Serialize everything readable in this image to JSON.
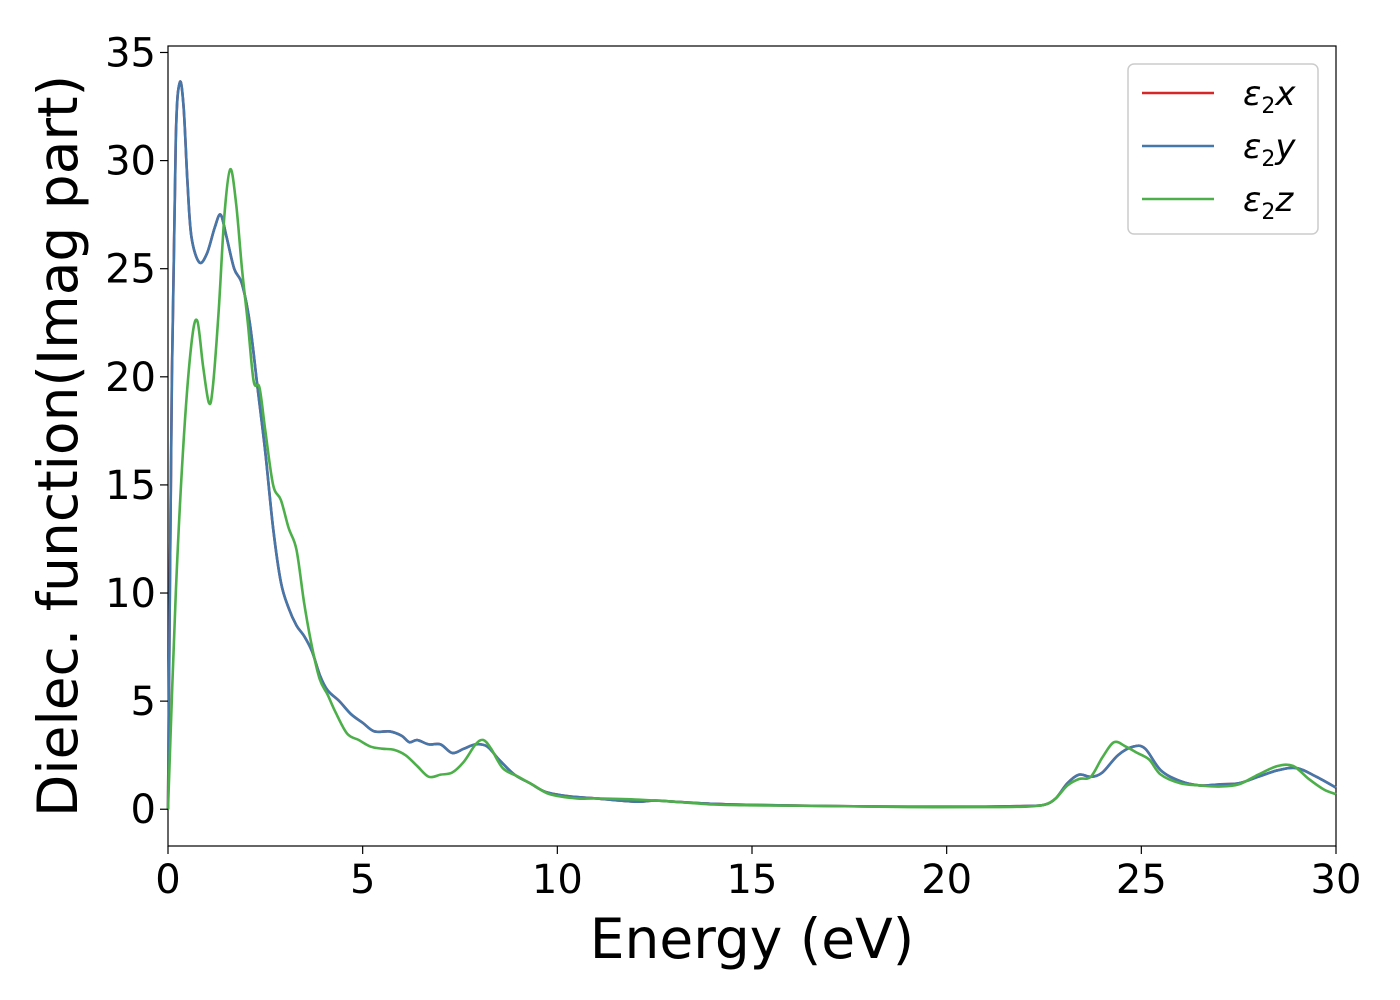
{
  "chart_data": {
    "type": "line",
    "xlabel": "Energy (eV)",
    "ylabel": "Dielec. function(Imag part)",
    "xlim": [
      0,
      30
    ],
    "ylim": [
      -1.7,
      35.3
    ],
    "xticks": [
      0,
      5,
      10,
      15,
      20,
      25,
      30
    ],
    "yticks": [
      0,
      5,
      10,
      15,
      20,
      25,
      30,
      35
    ],
    "grid": false,
    "legend_position": "top-right",
    "series": [
      {
        "name": "ε2x",
        "label_main": "ε",
        "label_sub": "2",
        "label_suffix": "x",
        "color": "#d62728",
        "points": [
          [
            0,
            0
          ],
          [
            0.1,
            20
          ],
          [
            0.2,
            31
          ],
          [
            0.3,
            33.6
          ],
          [
            0.4,
            32.5
          ],
          [
            0.5,
            29
          ],
          [
            0.6,
            26.5
          ],
          [
            0.8,
            25.3
          ],
          [
            1.0,
            25.7
          ],
          [
            1.2,
            26.9
          ],
          [
            1.35,
            27.5
          ],
          [
            1.5,
            26.5
          ],
          [
            1.7,
            25
          ],
          [
            1.9,
            24.3
          ],
          [
            2.1,
            22.5
          ],
          [
            2.3,
            19.5
          ],
          [
            2.5,
            16.5
          ],
          [
            2.7,
            13
          ],
          [
            2.9,
            10.5
          ],
          [
            3.1,
            9.3
          ],
          [
            3.3,
            8.5
          ],
          [
            3.5,
            8
          ],
          [
            3.7,
            7.3
          ],
          [
            3.9,
            6.2
          ],
          [
            4.1,
            5.5
          ],
          [
            4.4,
            5
          ],
          [
            4.7,
            4.4
          ],
          [
            5.0,
            4.0
          ],
          [
            5.3,
            3.6
          ],
          [
            5.7,
            3.6
          ],
          [
            6.0,
            3.4
          ],
          [
            6.2,
            3.1
          ],
          [
            6.4,
            3.2
          ],
          [
            6.7,
            3.0
          ],
          [
            7.0,
            3.0
          ],
          [
            7.3,
            2.6
          ],
          [
            7.6,
            2.8
          ],
          [
            7.9,
            3.0
          ],
          [
            8.2,
            2.9
          ],
          [
            8.5,
            2.3
          ],
          [
            8.9,
            1.6
          ],
          [
            9.3,
            1.2
          ],
          [
            9.7,
            0.8
          ],
          [
            10.3,
            0.6
          ],
          [
            11,
            0.5
          ],
          [
            12,
            0.35
          ],
          [
            12.5,
            0.4
          ],
          [
            13,
            0.35
          ],
          [
            14,
            0.25
          ],
          [
            15,
            0.2
          ],
          [
            17,
            0.15
          ],
          [
            19,
            0.12
          ],
          [
            21,
            0.12
          ],
          [
            22,
            0.15
          ],
          [
            22.5,
            0.2
          ],
          [
            22.8,
            0.5
          ],
          [
            23.1,
            1.2
          ],
          [
            23.4,
            1.6
          ],
          [
            23.7,
            1.5
          ],
          [
            24,
            1.7
          ],
          [
            24.4,
            2.5
          ],
          [
            24.8,
            2.9
          ],
          [
            25.1,
            2.8
          ],
          [
            25.5,
            1.8
          ],
          [
            26,
            1.3
          ],
          [
            26.5,
            1.1
          ],
          [
            27,
            1.15
          ],
          [
            27.5,
            1.2
          ],
          [
            28,
            1.5
          ],
          [
            28.5,
            1.8
          ],
          [
            29,
            1.9
          ],
          [
            29.5,
            1.5
          ],
          [
            30,
            1.0
          ]
        ]
      },
      {
        "name": "ε2y",
        "label_main": "ε",
        "label_sub": "2",
        "label_suffix": "y",
        "color": "#4477aa",
        "points": [
          [
            0,
            0
          ],
          [
            0.1,
            20
          ],
          [
            0.2,
            31
          ],
          [
            0.3,
            33.6
          ],
          [
            0.4,
            32.5
          ],
          [
            0.5,
            29
          ],
          [
            0.6,
            26.5
          ],
          [
            0.8,
            25.3
          ],
          [
            1.0,
            25.7
          ],
          [
            1.2,
            26.9
          ],
          [
            1.35,
            27.5
          ],
          [
            1.5,
            26.5
          ],
          [
            1.7,
            25
          ],
          [
            1.9,
            24.3
          ],
          [
            2.1,
            22.5
          ],
          [
            2.3,
            19.5
          ],
          [
            2.5,
            16.5
          ],
          [
            2.7,
            13
          ],
          [
            2.9,
            10.5
          ],
          [
            3.1,
            9.3
          ],
          [
            3.3,
            8.5
          ],
          [
            3.5,
            8
          ],
          [
            3.7,
            7.3
          ],
          [
            3.9,
            6.2
          ],
          [
            4.1,
            5.5
          ],
          [
            4.4,
            5
          ],
          [
            4.7,
            4.4
          ],
          [
            5.0,
            4.0
          ],
          [
            5.3,
            3.6
          ],
          [
            5.7,
            3.6
          ],
          [
            6.0,
            3.4
          ],
          [
            6.2,
            3.1
          ],
          [
            6.4,
            3.2
          ],
          [
            6.7,
            3.0
          ],
          [
            7.0,
            3.0
          ],
          [
            7.3,
            2.6
          ],
          [
            7.6,
            2.8
          ],
          [
            7.9,
            3.0
          ],
          [
            8.2,
            2.9
          ],
          [
            8.5,
            2.3
          ],
          [
            8.9,
            1.6
          ],
          [
            9.3,
            1.2
          ],
          [
            9.7,
            0.8
          ],
          [
            10.3,
            0.6
          ],
          [
            11,
            0.5
          ],
          [
            12,
            0.35
          ],
          [
            12.5,
            0.4
          ],
          [
            13,
            0.35
          ],
          [
            14,
            0.25
          ],
          [
            15,
            0.2
          ],
          [
            17,
            0.15
          ],
          [
            19,
            0.12
          ],
          [
            21,
            0.12
          ],
          [
            22,
            0.15
          ],
          [
            22.5,
            0.2
          ],
          [
            22.8,
            0.5
          ],
          [
            23.1,
            1.2
          ],
          [
            23.4,
            1.6
          ],
          [
            23.7,
            1.5
          ],
          [
            24,
            1.7
          ],
          [
            24.4,
            2.5
          ],
          [
            24.8,
            2.9
          ],
          [
            25.1,
            2.8
          ],
          [
            25.5,
            1.8
          ],
          [
            26,
            1.3
          ],
          [
            26.5,
            1.1
          ],
          [
            27,
            1.15
          ],
          [
            27.5,
            1.2
          ],
          [
            28,
            1.5
          ],
          [
            28.5,
            1.8
          ],
          [
            29,
            1.9
          ],
          [
            29.5,
            1.5
          ],
          [
            30,
            1.0
          ]
        ]
      },
      {
        "name": "ε2z",
        "label_main": "ε",
        "label_sub": "2",
        "label_suffix": "z",
        "color": "#4daf4a",
        "points": [
          [
            0,
            0
          ],
          [
            0.2,
            10
          ],
          [
            0.4,
            17
          ],
          [
            0.6,
            21.5
          ],
          [
            0.75,
            22.6
          ],
          [
            0.9,
            20.5
          ],
          [
            1.05,
            18.8
          ],
          [
            1.15,
            19.5
          ],
          [
            1.3,
            23
          ],
          [
            1.45,
            27.5
          ],
          [
            1.6,
            29.6
          ],
          [
            1.75,
            28
          ],
          [
            1.9,
            25
          ],
          [
            2.05,
            22.5
          ],
          [
            2.2,
            19.8
          ],
          [
            2.35,
            19.5
          ],
          [
            2.5,
            17.5
          ],
          [
            2.7,
            15
          ],
          [
            2.9,
            14.3
          ],
          [
            3.1,
            13
          ],
          [
            3.3,
            12
          ],
          [
            3.5,
            9.5
          ],
          [
            3.7,
            7.5
          ],
          [
            3.9,
            6
          ],
          [
            4.1,
            5.3
          ],
          [
            4.3,
            4.5
          ],
          [
            4.6,
            3.5
          ],
          [
            4.9,
            3.2
          ],
          [
            5.2,
            2.9
          ],
          [
            5.5,
            2.8
          ],
          [
            5.8,
            2.75
          ],
          [
            6.1,
            2.5
          ],
          [
            6.4,
            2.0
          ],
          [
            6.7,
            1.5
          ],
          [
            7.0,
            1.6
          ],
          [
            7.3,
            1.7
          ],
          [
            7.6,
            2.2
          ],
          [
            7.9,
            3.0
          ],
          [
            8.1,
            3.2
          ],
          [
            8.3,
            2.8
          ],
          [
            8.6,
            1.9
          ],
          [
            9.0,
            1.5
          ],
          [
            9.4,
            1.1
          ],
          [
            9.8,
            0.7
          ],
          [
            10.5,
            0.5
          ],
          [
            11,
            0.5
          ],
          [
            12,
            0.45
          ],
          [
            13,
            0.35
          ],
          [
            14,
            0.22
          ],
          [
            15,
            0.18
          ],
          [
            17,
            0.15
          ],
          [
            19,
            0.1
          ],
          [
            21,
            0.1
          ],
          [
            22,
            0.12
          ],
          [
            22.5,
            0.2
          ],
          [
            22.8,
            0.5
          ],
          [
            23.1,
            1.1
          ],
          [
            23.4,
            1.4
          ],
          [
            23.7,
            1.5
          ],
          [
            24,
            2.4
          ],
          [
            24.3,
            3.1
          ],
          [
            24.6,
            2.9
          ],
          [
            24.9,
            2.6
          ],
          [
            25.2,
            2.3
          ],
          [
            25.5,
            1.6
          ],
          [
            26,
            1.2
          ],
          [
            26.5,
            1.1
          ],
          [
            27,
            1.05
          ],
          [
            27.5,
            1.15
          ],
          [
            28,
            1.6
          ],
          [
            28.5,
            2.0
          ],
          [
            28.9,
            2.0
          ],
          [
            29.3,
            1.4
          ],
          [
            29.7,
            0.9
          ],
          [
            30,
            0.7
          ]
        ]
      }
    ]
  }
}
